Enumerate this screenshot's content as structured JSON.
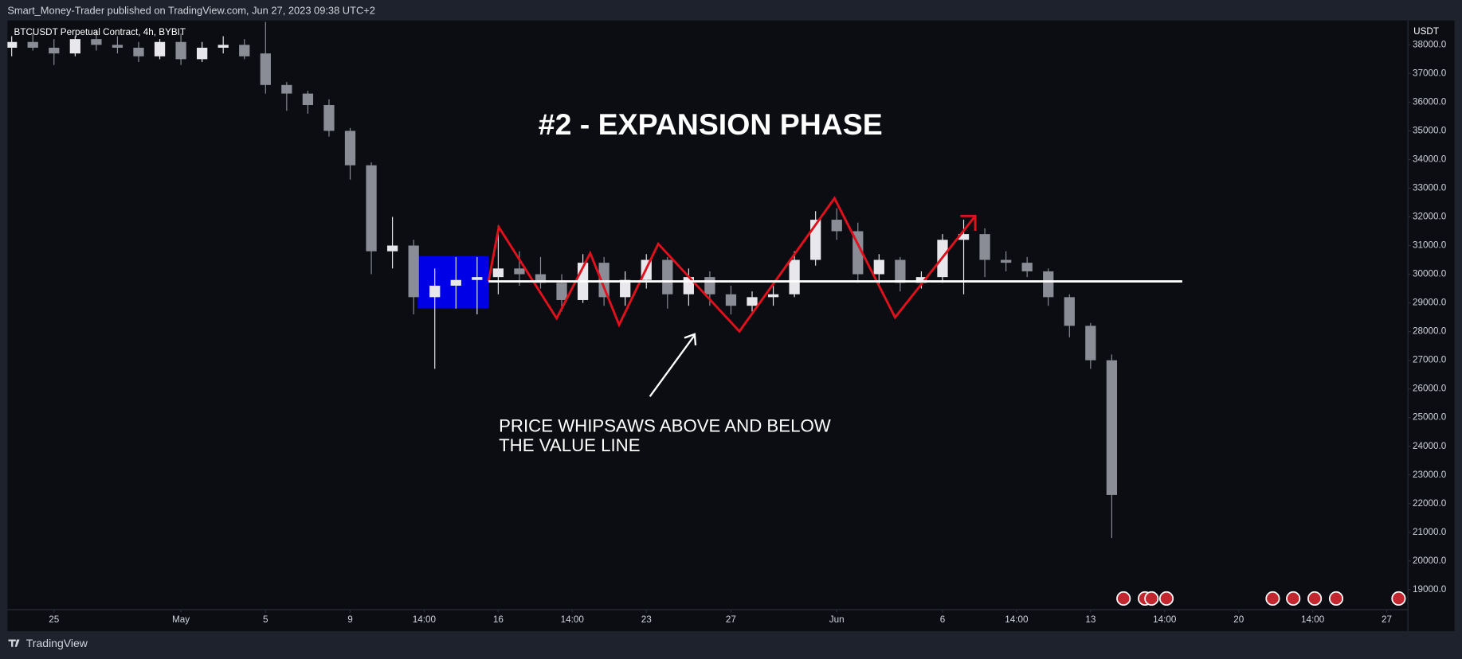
{
  "header": {
    "text": "Smart_Money-Trader published on TradingView.com, Jun 27, 2023 09:38 UTC+2"
  },
  "chart_data": {
    "type": "candlestick",
    "symbol": "BTCUSDT Perpetual Contract, 4h, BYBIT",
    "title": "#2 - EXPANSION PHASE",
    "annotation": [
      "PRICE WHIPSAWS ABOVE AND BELOW",
      "THE VALUE LINE"
    ],
    "currency": "USDT",
    "x": [
      0,
      1,
      2,
      3,
      4,
      5,
      6,
      7,
      8,
      9,
      10,
      11,
      12,
      13,
      14,
      15,
      16,
      17,
      18,
      19,
      20,
      21,
      22,
      23,
      24,
      25,
      26,
      27,
      28,
      29,
      30,
      31,
      32,
      33,
      34,
      35,
      36,
      37,
      38,
      39,
      40,
      41,
      42,
      43,
      44,
      45,
      46,
      47,
      48,
      49,
      50,
      51,
      52
    ],
    "open": [
      37900,
      38100,
      37900,
      37700,
      38200,
      38000,
      37900,
      37600,
      38100,
      37500,
      37900,
      38000,
      37700,
      36600,
      36300,
      35900,
      35000,
      33800,
      30800,
      31000,
      29200,
      29600,
      29800,
      29900,
      30200,
      30000,
      29700,
      29100,
      30400,
      29200,
      29800,
      30500,
      29300,
      29900,
      29300,
      28900,
      29200,
      29300,
      30500,
      31900,
      31500,
      30000,
      30500,
      29700,
      29900,
      31200,
      31400,
      30500,
      30400,
      30100,
      29200,
      28200,
      27000
    ],
    "high": [
      38300,
      38400,
      38200,
      38300,
      38500,
      38300,
      38100,
      38200,
      38400,
      38100,
      38300,
      38200,
      38800,
      36700,
      36400,
      36100,
      35100,
      33900,
      32000,
      31200,
      30200,
      30600,
      30600,
      31700,
      30800,
      30600,
      30000,
      30700,
      30600,
      30100,
      30700,
      30600,
      30200,
      30100,
      29600,
      29400,
      29600,
      30800,
      32200,
      32300,
      31800,
      30700,
      30600,
      30100,
      31400,
      31900,
      31600,
      30800,
      30600,
      30200,
      29300,
      28300,
      27200
    ],
    "low": [
      37600,
      37800,
      37300,
      37600,
      37800,
      37700,
      37400,
      37500,
      37300,
      37400,
      37700,
      37500,
      36300,
      35700,
      35600,
      34800,
      33300,
      30000,
      30200,
      28600,
      26700,
      28800,
      28600,
      29300,
      29600,
      29500,
      28700,
      29000,
      28900,
      28900,
      29500,
      28800,
      28900,
      28900,
      28600,
      28700,
      28900,
      29200,
      30300,
      31200,
      29700,
      29600,
      29400,
      29500,
      29700,
      29300,
      29900,
      30100,
      29900,
      28900,
      27800,
      26700,
      20800
    ],
    "close": [
      38100,
      37900,
      37700,
      38200,
      38000,
      37900,
      37600,
      38100,
      37500,
      37900,
      38000,
      37600,
      36600,
      36300,
      35900,
      35000,
      33800,
      30800,
      31000,
      29200,
      29600,
      29800,
      29900,
      30200,
      30000,
      29700,
      29100,
      30400,
      29200,
      29800,
      30500,
      29300,
      29900,
      29300,
      28900,
      29200,
      29300,
      30500,
      31900,
      31500,
      30000,
      30500,
      29700,
      29900,
      31200,
      31400,
      30500,
      30400,
      30100,
      29200,
      28200,
      27000,
      22300
    ],
    "up_color": "#e8e8ec",
    "down_color": "#8a8d96",
    "value_line": 29750,
    "xlim": [
      -0.2,
      66
    ],
    "xticks": [
      {
        "value": 2,
        "label": "25"
      },
      {
        "value": 8,
        "label": "May"
      },
      {
        "value": 12,
        "label": "5"
      },
      {
        "value": 16,
        "label": "9"
      },
      {
        "value": 19.5,
        "label": "14:00"
      },
      {
        "value": 23,
        "label": "16"
      },
      {
        "value": 26.5,
        "label": "14:00"
      },
      {
        "value": 30,
        "label": "23"
      },
      {
        "value": 34,
        "label": "27"
      },
      {
        "value": 39,
        "label": "Jun"
      },
      {
        "value": 44,
        "label": "6"
      },
      {
        "value": 47.5,
        "label": "14:00"
      },
      {
        "value": 51,
        "label": "13"
      },
      {
        "value": 54.5,
        "label": "14:00"
      },
      {
        "value": 58,
        "label": "20"
      },
      {
        "value": 61.5,
        "label": "14:00"
      },
      {
        "value": 65,
        "label": "27"
      }
    ],
    "ylim": [
      18300,
      38850
    ],
    "yticks": [
      {
        "value": 19000,
        "label": "19000.0"
      },
      {
        "value": 20000,
        "label": "20000.0"
      },
      {
        "value": 21000,
        "label": "21000.0"
      },
      {
        "value": 22000,
        "label": "22000.0"
      },
      {
        "value": 23000,
        "label": "23000.0"
      },
      {
        "value": 24000,
        "label": "24000.0"
      },
      {
        "value": 25000,
        "label": "25000.0"
      },
      {
        "value": 26000,
        "label": "26000.0"
      },
      {
        "value": 27000,
        "label": "27000.0"
      },
      {
        "value": 28000,
        "label": "28000.0"
      },
      {
        "value": 29000,
        "label": "29000.0"
      },
      {
        "value": 30000,
        "label": "30000.0"
      },
      {
        "value": 31000,
        "label": "31000.0"
      },
      {
        "value": 32000,
        "label": "32000.0"
      },
      {
        "value": 33000,
        "label": "33000.0"
      },
      {
        "value": 34000,
        "label": "34000.0"
      },
      {
        "value": 35000,
        "label": "35000.0"
      },
      {
        "value": 36000,
        "label": "36000.0"
      },
      {
        "value": 37000,
        "label": "37000.0"
      },
      {
        "value": 38000,
        "label": "38000.0"
      }
    ]
  },
  "footer": {
    "brand": "TradingView"
  }
}
